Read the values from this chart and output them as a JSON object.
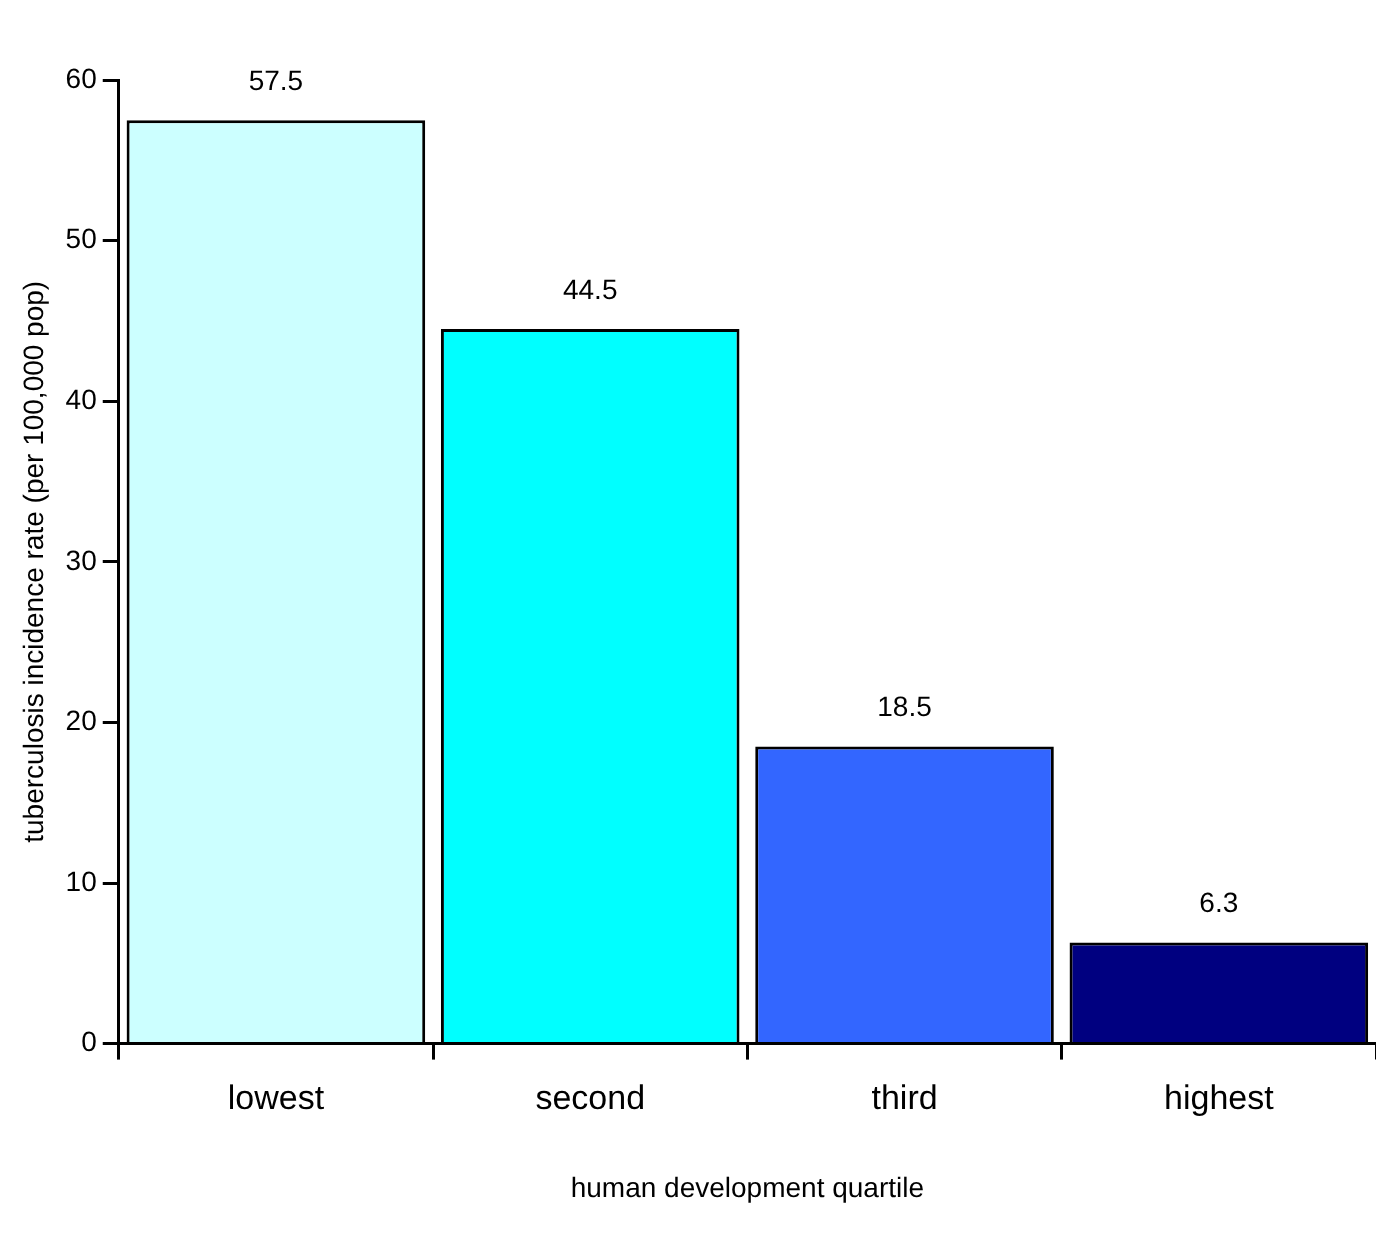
{
  "chart_data": {
    "type": "bar",
    "xlabel": "human development quartile",
    "ylabel": "tuberculosis incidence rate (per 100,000 pop)",
    "categories": [
      "lowest",
      "second",
      "third",
      "highest"
    ],
    "values": [
      57.5,
      44.5,
      18.5,
      6.3
    ],
    "colors": [
      "#ccffff",
      "#00ffff",
      "#3366ff",
      "#000080"
    ],
    "ylim": [
      0,
      60
    ],
    "yticks": [
      0,
      10,
      20,
      30,
      40,
      50,
      60
    ],
    "grid": false,
    "legend": false,
    "data_labels": true
  }
}
